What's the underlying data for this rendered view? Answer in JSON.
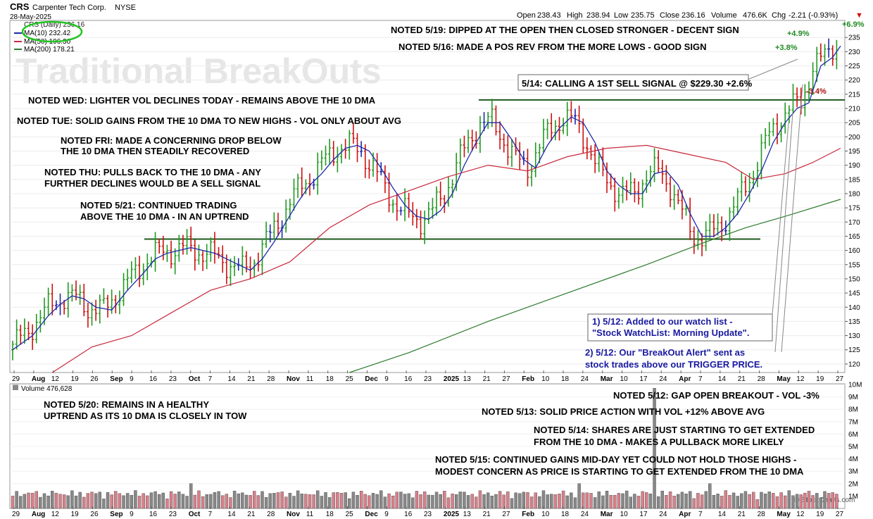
{
  "header": {
    "symbol": "CRS",
    "company": "Carpenter Tech Corp.",
    "exchange": "NYSE",
    "date": "28-May-2025",
    "open_label": "Open",
    "open": "238.43",
    "high_label": "High",
    "high": "238.94",
    "low_label": "Low",
    "low": "235.75",
    "close_label": "Close",
    "close": "236.16",
    "volume_label": "Volume",
    "volume": "476.6K",
    "chg_label": "Chg",
    "chg": "-2.21 (-0.93%)",
    "chg_arrow": "▼"
  },
  "legend": [
    {
      "label": "CRS (Daily) 236.16",
      "color": "#000000"
    },
    {
      "label": "MA(10) 232.42",
      "color": "#1e2aa8"
    },
    {
      "label": "MA(50) 196.30",
      "color": "#c8283c"
    },
    {
      "label": "MA(200) 178.21",
      "color": "#2c7a2c"
    }
  ],
  "watermark": "Traditional BreakOuts",
  "volume_legend": "Volume 476,628",
  "credit": "© StockCharts.com",
  "annotations": {
    "a519": "NOTED 5/19: DIPPED AT THE OPEN THEN CLOSED STRONGER - DECENT SIGN",
    "a516": "NOTED 5/16: MADE A POS REV FROM THE MORE LOWS - GOOD SIGN",
    "a514box": "5/14: CALLING A 1ST SELL SIGNAL @ $229.30 +2.6%",
    "awed": "NOTED WED: LIGHTER VOL DECLINES TODAY - REMAINS ABOVE THE 10 DMA",
    "atue": "NOTED TUE: SOLID GAINS FROM THE 10 DMA TO NEW HIGHS - VOL ONLY ABOUT AVG",
    "afri1": "NOTED FRI: MADE A CONCERNING DROP BELOW",
    "afri2": "THE 10 DMA THEN STEADILY RECOVERED",
    "athu1": "NOTED THU: PULLS BACK TO THE 10 DMA - ANY",
    "athu2": "FURTHER DECLINES WOULD BE A SELL SIGNAL",
    "a521a": "NOTED 5/21: CONTINUED TRADING",
    "a521b": "ABOVE THE 10 DMA - IN AN UPTREND",
    "box1a": "1) 5/12: Added to our watch list -",
    "box1b": "\"Stock WatchList: Morning Update\".",
    "box2a": "2) 5/12: Our \"BreakOut Alert\" sent as",
    "box2b": "stock trades above our TRIGGER PRICE.",
    "p69": "+6.9%",
    "p49": "+4.9%",
    "p38": "+3.8%",
    "m34": "-3.4%",
    "a520a": "NOTED 5/20: REMAINS IN A HEALTHY",
    "a520b": "UPTREND AS ITS 10 DMA IS CLOSELY IN TOW",
    "v512": "NOTED 5/12: GAP OPEN BREAKOUT - VOL -3%",
    "v513": "NOTED 5/13: SOLID PRICE ACTION WITH VOL +12% ABOVE AVG",
    "v514a": "NOTED 5/14: SHARES ARE JUST STARTING TO GET EXTENDED",
    "v514b": "FROM THE 10 DMA - MAKES A PULLBACK MORE LIKELY",
    "v515a": "NOTED 5/15: CONTINUED GAINS MID-DAY YET COULD NOT HOLD THOSE HIGHS -",
    "v515b": "MODEST CONCERN AS PRICE IS STARTING TO GET EXTENDED FROM THE 10 DMA"
  },
  "chart_data": [
    {
      "type": "ohlc",
      "ylim": [
        117,
        241
      ],
      "yticks": [
        120,
        125,
        130,
        135,
        140,
        145,
        150,
        155,
        160,
        165,
        170,
        175,
        180,
        185,
        190,
        195,
        200,
        205,
        210,
        215,
        220,
        225,
        230,
        235
      ],
      "xticks": [
        {
          "label": "29",
          "bold": false
        },
        {
          "label": "Aug",
          "bold": true
        },
        {
          "label": "12",
          "bold": false
        },
        {
          "label": "19",
          "bold": false
        },
        {
          "label": "26",
          "bold": false
        },
        {
          "label": "Sep",
          "bold": true
        },
        {
          "label": "9",
          "bold": false
        },
        {
          "label": "16",
          "bold": false
        },
        {
          "label": "23",
          "bold": false
        },
        {
          "label": "Oct",
          "bold": true
        },
        {
          "label": "7",
          "bold": false
        },
        {
          "label": "14",
          "bold": false
        },
        {
          "label": "21",
          "bold": false
        },
        {
          "label": "28",
          "bold": false
        },
        {
          "label": "Nov",
          "bold": true
        },
        {
          "label": "11",
          "bold": false
        },
        {
          "label": "18",
          "bold": false
        },
        {
          "label": "25",
          "bold": false
        },
        {
          "label": "Dec",
          "bold": true
        },
        {
          "label": "9",
          "bold": false
        },
        {
          "label": "16",
          "bold": false
        },
        {
          "label": "23",
          "bold": false
        },
        {
          "label": "2025",
          "bold": true
        },
        {
          "label": "13",
          "bold": false
        },
        {
          "label": "21",
          "bold": false
        },
        {
          "label": "27",
          "bold": false
        },
        {
          "label": "Feb",
          "bold": true
        },
        {
          "label": "10",
          "bold": false
        },
        {
          "label": "18",
          "bold": false
        },
        {
          "label": "24",
          "bold": false
        },
        {
          "label": "Mar",
          "bold": true
        },
        {
          "label": "10",
          "bold": false
        },
        {
          "label": "17",
          "bold": false
        },
        {
          "label": "24",
          "bold": false
        },
        {
          "label": "Apr",
          "bold": true
        },
        {
          "label": "7",
          "bold": false
        },
        {
          "label": "14",
          "bold": false
        },
        {
          "label": "21",
          "bold": false
        },
        {
          "label": "28",
          "bold": false
        },
        {
          "label": "May",
          "bold": true
        },
        {
          "label": "12",
          "bold": false
        },
        {
          "label": "19",
          "bold": false
        },
        {
          "label": "27",
          "bold": false
        }
      ],
      "support_level": 164,
      "resistance_level": 213,
      "ma10_points": [
        [
          0,
          125
        ],
        [
          5,
          130
        ],
        [
          9,
          137
        ],
        [
          12,
          141
        ],
        [
          15,
          144
        ],
        [
          18,
          143
        ],
        [
          21,
          140
        ],
        [
          25,
          139
        ],
        [
          29,
          146
        ],
        [
          33,
          152
        ],
        [
          36,
          157
        ],
        [
          39,
          159
        ],
        [
          42,
          160
        ],
        [
          45,
          161
        ],
        [
          48,
          160
        ],
        [
          51,
          159
        ],
        [
          54,
          157
        ],
        [
          57,
          155
        ],
        [
          60,
          153
        ],
        [
          63,
          157
        ],
        [
          66,
          163
        ],
        [
          69,
          170
        ],
        [
          72,
          177
        ],
        [
          75,
          183
        ],
        [
          78,
          187
        ],
        [
          81,
          192
        ],
        [
          84,
          196
        ],
        [
          87,
          197
        ],
        [
          90,
          195
        ],
        [
          93,
          189
        ],
        [
          96,
          182
        ],
        [
          99,
          176
        ],
        [
          102,
          172
        ],
        [
          105,
          171
        ],
        [
          108,
          174
        ],
        [
          111,
          180
        ],
        [
          114,
          190
        ],
        [
          117,
          198
        ],
        [
          120,
          205
        ],
        [
          123,
          205
        ],
        [
          126,
          199
        ],
        [
          129,
          192
        ],
        [
          132,
          189
        ],
        [
          135,
          197
        ],
        [
          138,
          203
        ],
        [
          141,
          207
        ],
        [
          144,
          205
        ],
        [
          147,
          198
        ],
        [
          150,
          188
        ],
        [
          153,
          183
        ],
        [
          156,
          180
        ],
        [
          159,
          180
        ],
        [
          162,
          187
        ],
        [
          165,
          188
        ],
        [
          168,
          183
        ],
        [
          171,
          173
        ],
        [
          174,
          165
        ],
        [
          177,
          165
        ],
        [
          180,
          168
        ],
        [
          183,
          173
        ],
        [
          186,
          180
        ],
        [
          189,
          188
        ],
        [
          192,
          198
        ],
        [
          195,
          205
        ],
        [
          198,
          210
        ],
        [
          201,
          212
        ],
        [
          204,
          225
        ],
        [
          207,
          228
        ],
        [
          209,
          232
        ]
      ],
      "ma50_points": [
        [
          10,
          117
        ],
        [
          20,
          126
        ],
        [
          30,
          130
        ],
        [
          40,
          138
        ],
        [
          50,
          146
        ],
        [
          60,
          150
        ],
        [
          70,
          156
        ],
        [
          80,
          168
        ],
        [
          90,
          176
        ],
        [
          100,
          181
        ],
        [
          110,
          186
        ],
        [
          120,
          190
        ],
        [
          130,
          188
        ],
        [
          140,
          193
        ],
        [
          150,
          196
        ],
        [
          160,
          197
        ],
        [
          170,
          194
        ],
        [
          180,
          191
        ],
        [
          187,
          185
        ],
        [
          195,
          187
        ],
        [
          202,
          191
        ],
        [
          209,
          196
        ]
      ],
      "ma200_points": [
        [
          85,
          117
        ],
        [
          100,
          124
        ],
        [
          120,
          135
        ],
        [
          140,
          145
        ],
        [
          160,
          155
        ],
        [
          175,
          163
        ],
        [
          185,
          168
        ],
        [
          195,
          172
        ],
        [
          209,
          178
        ]
      ],
      "volume_ylim": [
        0,
        10000000
      ],
      "volume_yticks": [
        "1M",
        "2M",
        "3M",
        "4M",
        "5M",
        "6M",
        "7M",
        "8M",
        "9M",
        "10M"
      ]
    }
  ],
  "colors": {
    "up": "#229922",
    "down": "#cc1111",
    "neutral": "#1e2aa8",
    "ma10": "#1e2aa8",
    "ma50": "#c8283c",
    "ma200": "#2c7a2c",
    "level": "#1e5a1e",
    "oval": "#22c422"
  }
}
